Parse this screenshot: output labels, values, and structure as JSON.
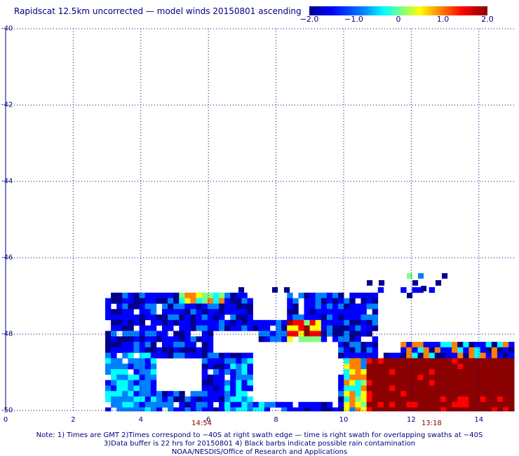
{
  "header": {
    "title": "Rapidscat 12.5km uncorrected — model winds 20150801 ascending"
  },
  "colorbar": {
    "ticks": [
      {
        "label": "−2.0",
        "value": -2.0
      },
      {
        "label": "−1.0",
        "value": -1.0
      },
      {
        "label": "0",
        "value": 0
      },
      {
        "label": "1.0",
        "value": 1.0
      },
      {
        "label": "2.0",
        "value": 2.0
      }
    ],
    "colors": [
      "#00008b",
      "#0000ff",
      "#0080ff",
      "#00ffff",
      "#80ff80",
      "#ffff00",
      "#ff8000",
      "#ff0000",
      "#8b0000"
    ]
  },
  "map": {
    "lat_labels": [
      "-40",
      "-42",
      "-44",
      "-46",
      "-48",
      "-50"
    ],
    "lon_labels": [
      "0",
      "2",
      "4",
      "6",
      "8",
      "10",
      "12",
      "14"
    ],
    "time_labels": [
      {
        "label": "14:54",
        "lon": 5.8
      },
      {
        "label": "13:18",
        "lon": 12.6
      }
    ]
  },
  "footer": {
    "note_line1": "Note: 1) Times are GMT 2)Times correspond to −40S at right swath edge — time is right swath for overlapping swaths at −40S",
    "note_line2": "3)Data buffer is 22 hrs for 20150801 4) Black barbs indicate possible rain contamination",
    "note_line3": "NOAA/NESDIS/Office of Research and Applications"
  }
}
